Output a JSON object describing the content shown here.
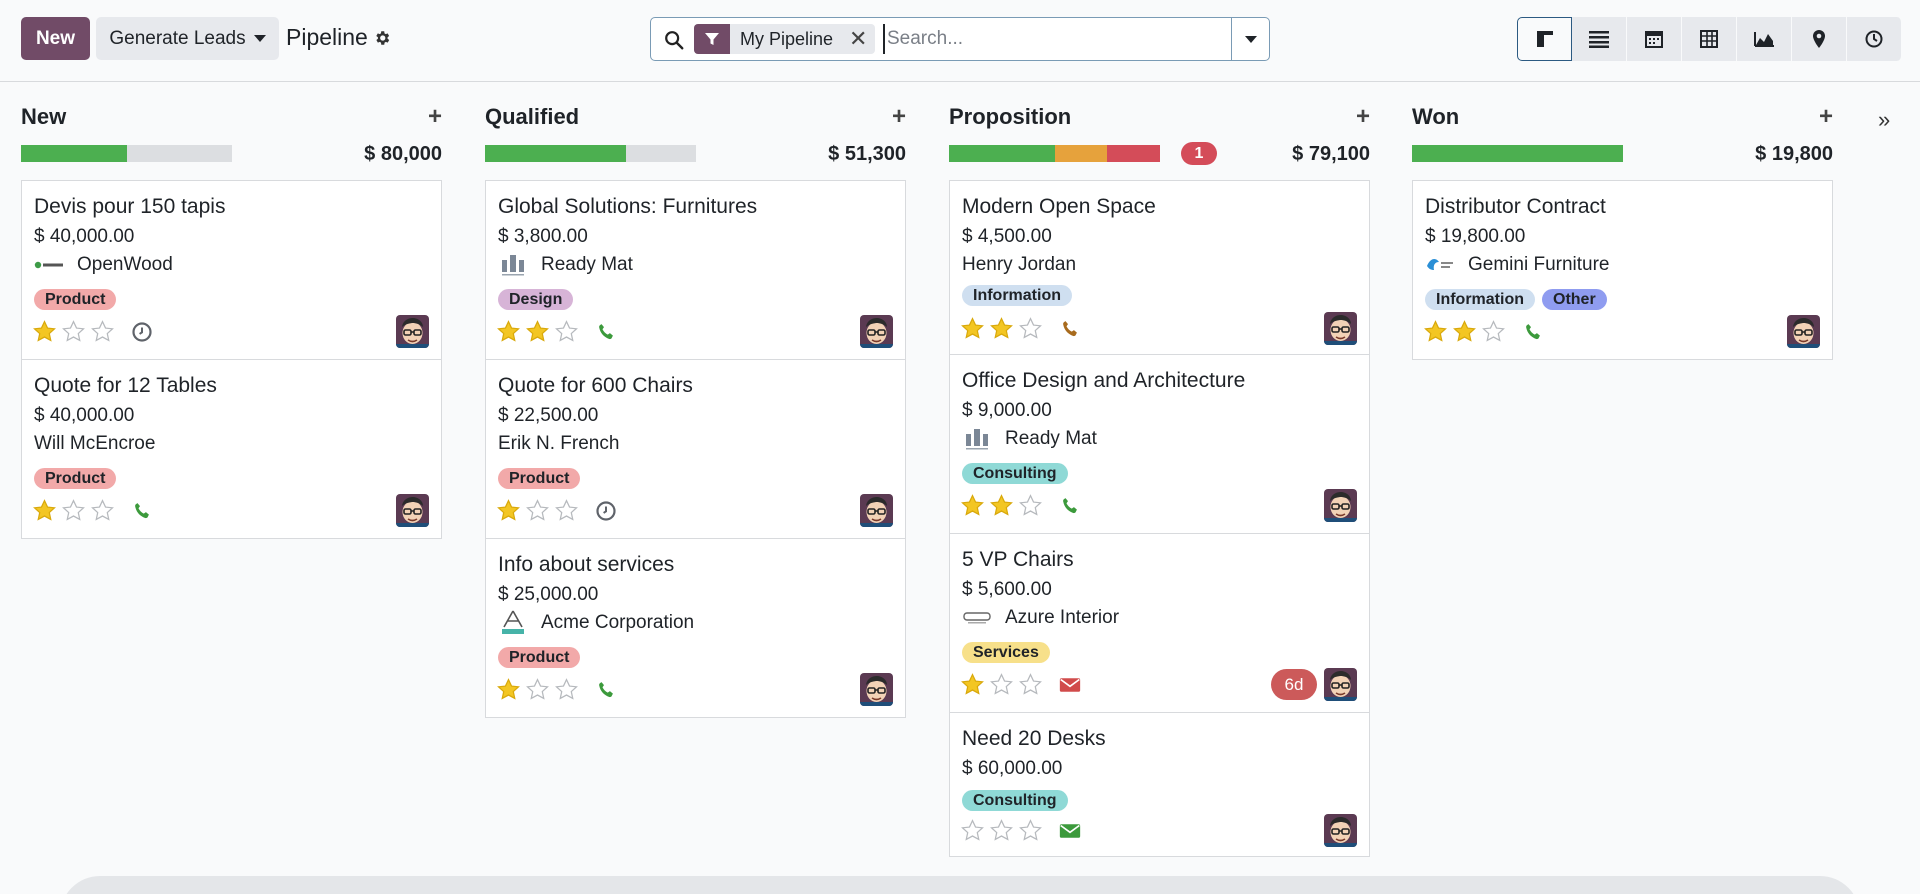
{
  "header": {
    "new_label": "New",
    "generate_label": "Generate Leads",
    "title": "Pipeline",
    "search": {
      "facet_label": "My Pipeline",
      "placeholder": "Search..."
    },
    "views": [
      "kanban-icon",
      "list-icon",
      "calendar-icon",
      "pivot-icon",
      "graph-icon",
      "map-icon",
      "activity-icon"
    ]
  },
  "colors": {
    "primary": "#714b67",
    "green": "#4caf50",
    "orange": "#e6a23c",
    "red": "#d44c59",
    "star": "#f3c623"
  },
  "columns": [
    {
      "title": "New",
      "total": "$ 80,000",
      "progress": [
        {
          "color": "#4caf50",
          "fraction": 0.5
        }
      ],
      "cards": [
        {
          "name": "Devis pour 150 tapis",
          "amount": "$ 40,000.00",
          "partner": "OpenWood",
          "logo": "openwood",
          "tags": [
            {
              "label": "Product",
              "color": "red"
            }
          ],
          "stars": 1,
          "activity": "clock"
        },
        {
          "name": "Quote for 12 Tables",
          "amount": "$ 40,000.00",
          "partner": "Will McEncroe",
          "logo": "",
          "tags": [
            {
              "label": "Product",
              "color": "red"
            }
          ],
          "stars": 1,
          "activity": "phone-green"
        }
      ]
    },
    {
      "title": "Qualified",
      "total": "$ 51,300",
      "progress": [
        {
          "color": "#4caf50",
          "fraction": 0.667
        }
      ],
      "cards": [
        {
          "name": "Global Solutions: Furnitures",
          "amount": "$ 3,800.00",
          "partner": "Ready Mat",
          "logo": "readymat",
          "tags": [
            {
              "label": "Design",
              "color": "purple"
            }
          ],
          "stars": 2,
          "activity": "phone-green"
        },
        {
          "name": "Quote for 600 Chairs",
          "amount": "$ 22,500.00",
          "partner": "Erik N. French",
          "logo": "",
          "tags": [
            {
              "label": "Product",
              "color": "red"
            }
          ],
          "stars": 1,
          "activity": "clock"
        },
        {
          "name": "Info about services",
          "amount": "$ 25,000.00",
          "partner": "Acme Corporation",
          "logo": "acme",
          "tags": [
            {
              "label": "Product",
              "color": "red"
            }
          ],
          "stars": 1,
          "activity": "phone-green"
        }
      ]
    },
    {
      "title": "Proposition",
      "total": "$ 79,100",
      "badge": "1",
      "progress": [
        {
          "color": "#4caf50",
          "fraction": 0.5
        },
        {
          "color": "#e6a23c",
          "fraction": 0.25
        },
        {
          "color": "#d44c59",
          "fraction": 0.25
        }
      ],
      "cards": [
        {
          "name": "Modern Open Space",
          "amount": "$ 4,500.00",
          "partner": "Henry Jordan",
          "logo": "",
          "tags": [
            {
              "label": "Information",
              "color": "blue"
            }
          ],
          "stars": 2,
          "activity": "phone-orange",
          "compact": true
        },
        {
          "name": "Office Design and Architecture",
          "amount": "$ 9,000.00",
          "partner": "Ready Mat",
          "logo": "readymat",
          "tags": [
            {
              "label": "Consulting",
              "color": "teal"
            }
          ],
          "stars": 2,
          "activity": "phone-green"
        },
        {
          "name": "5 VP Chairs",
          "amount": "$ 5,600.00",
          "partner": "Azure Interior",
          "logo": "azure",
          "tags": [
            {
              "label": "Services",
              "color": "yellow"
            }
          ],
          "stars": 1,
          "activity": "mail-red",
          "late": "6d"
        },
        {
          "name": "Need 20 Desks",
          "amount": "$ 60,000.00",
          "partner": "",
          "logo": "",
          "tags": [
            {
              "label": "Consulting",
              "color": "teal"
            }
          ],
          "stars": 0,
          "activity": "mail-green",
          "short": true
        }
      ]
    },
    {
      "title": "Won",
      "total": "$ 19,800",
      "progress": [
        {
          "color": "#4caf50",
          "fraction": 1.0
        }
      ],
      "cards": [
        {
          "name": "Distributor Contract",
          "amount": "$ 19,800.00",
          "partner": "Gemini Furniture",
          "logo": "gemini",
          "tags": [
            {
              "label": "Information",
              "color": "blue"
            },
            {
              "label": "Other",
              "color": "indigo"
            }
          ],
          "stars": 2,
          "activity": "phone-green"
        }
      ]
    }
  ]
}
